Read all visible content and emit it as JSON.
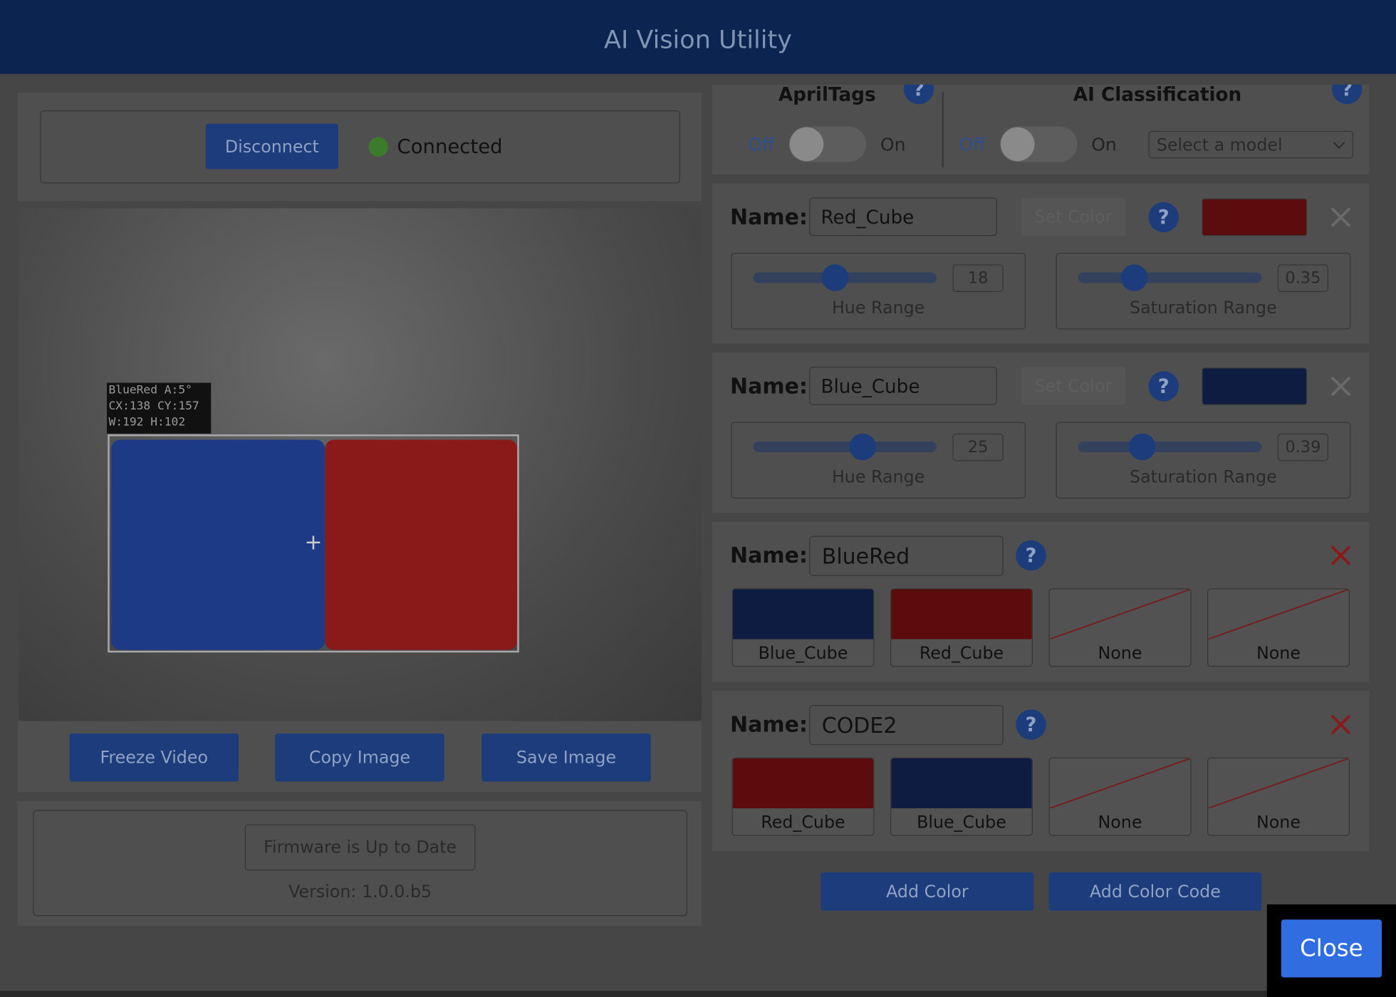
{
  "header": {
    "title": "AI Vision Utility"
  },
  "connection": {
    "button": "Disconnect",
    "status": "Connected"
  },
  "video": {
    "overlay": [
      "BlueRed A:5°",
      "CX:138 CY:157",
      "W:192 H:102"
    ],
    "buttons": [
      "Freeze Video",
      "Copy Image",
      "Save Image"
    ]
  },
  "firmware": {
    "status": "Firmware is Up to Date",
    "version": "Version: 1.0.0.b5"
  },
  "apriltags": {
    "title": "AprilTags",
    "off": "Off",
    "on": "On",
    "help": "?"
  },
  "ai_classification": {
    "title": "AI Classification",
    "off": "Off",
    "on": "On",
    "help": "?",
    "select": "Select a model"
  },
  "colors": [
    {
      "label": "Name:",
      "name": "Red_Cube",
      "set_color": "Set Color",
      "help": "?",
      "color": "#5c0c0c",
      "hue_value": "18",
      "hue_label": "Hue Range",
      "sat_value": "0.35",
      "sat_label": "Saturation Range"
    },
    {
      "label": "Name:",
      "name": "Blue_Cube",
      "set_color": "Set Color",
      "help": "?",
      "color": "#0d1c40",
      "hue_value": "25",
      "hue_label": "Hue Range",
      "sat_value": "0.39",
      "sat_label": "Saturation Range"
    }
  ],
  "color_codes": [
    {
      "label": "Name:",
      "name": "BlueRed",
      "help": "?",
      "slots": [
        {
          "name": "Blue_Cube",
          "color": "#0d1c40"
        },
        {
          "name": "Red_Cube",
          "color": "#5c0c0c"
        },
        {
          "name": "None"
        },
        {
          "name": "None"
        }
      ]
    },
    {
      "label": "Name:",
      "name": "CODE2",
      "help": "?",
      "slots": [
        {
          "name": "Red_Cube",
          "color": "#5c0c0c"
        },
        {
          "name": "Blue_Cube",
          "color": "#0d1c40"
        },
        {
          "name": "None"
        },
        {
          "name": "None"
        }
      ]
    }
  ],
  "actions": {
    "add_color": "Add Color",
    "add_color_code": "Add Color Code",
    "close": "Close"
  }
}
